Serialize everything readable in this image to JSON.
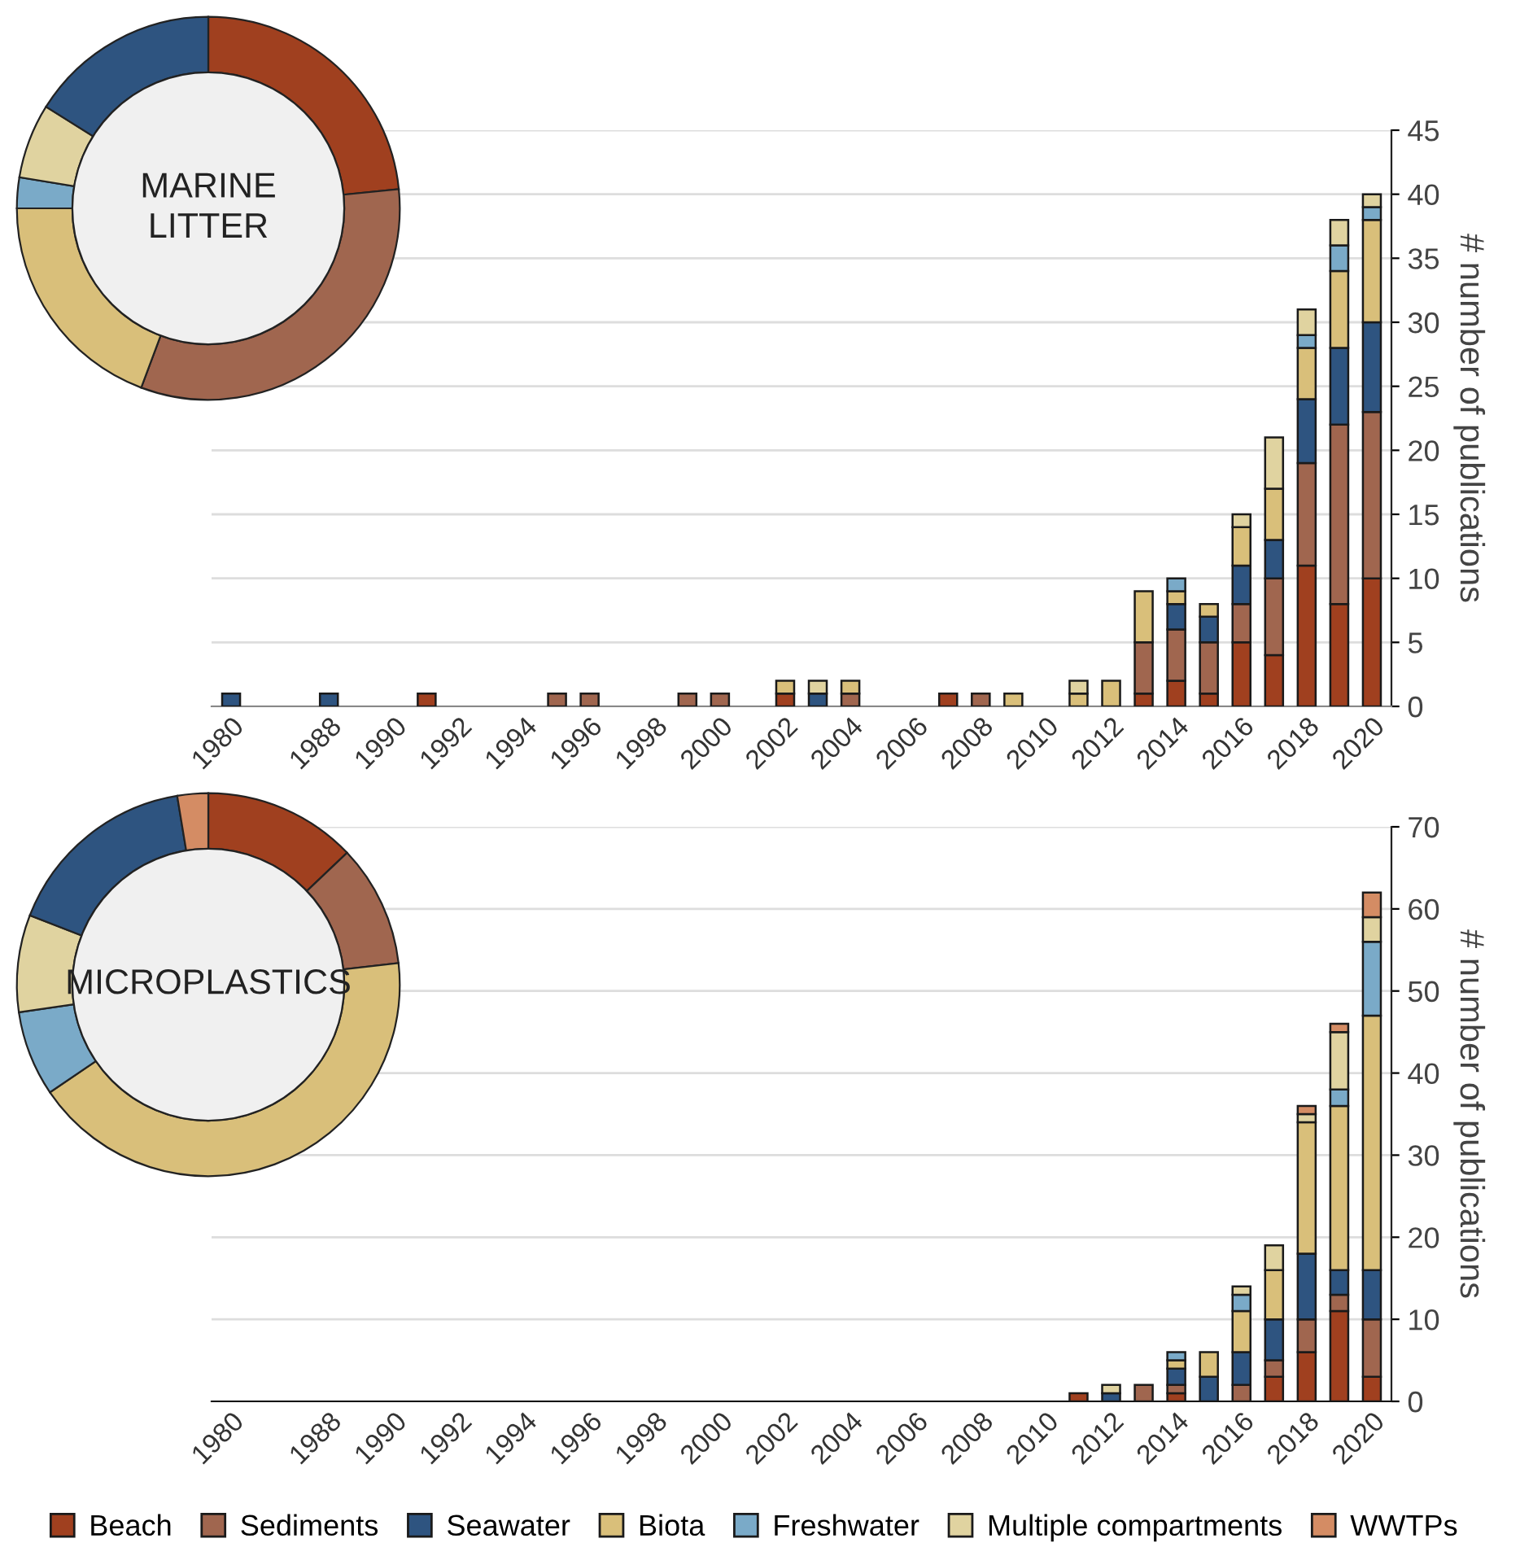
{
  "chart_data": [
    {
      "type": "donut",
      "title": "MARINE\nLITTER",
      "categories": [
        null,
        null,
        null,
        null,
        null,
        null
      ],
      "values": [
        23.4,
        32.3,
        19.3,
        2.6,
        6.3,
        16.1
      ],
      "colors": [
        "#a0401f",
        "#a0664f",
        "#d9bf7a",
        "#7aaac8",
        "#e0d3a0",
        "#2e5480"
      ]
    },
    {
      "type": "bar",
      "stacked": true,
      "ylabel": "# number of publications",
      "ylim": [
        0,
        45
      ],
      "yticks": [
        0,
        5,
        10,
        15,
        20,
        25,
        30,
        35,
        40,
        45
      ],
      "grid": "y",
      "legend": false,
      "categories": [
        "1980",
        null,
        null,
        "1988",
        null,
        "1990",
        null,
        "1992",
        null,
        "1994",
        null,
        "1996",
        null,
        "1998",
        null,
        "2000",
        null,
        "2002",
        null,
        "2004",
        null,
        "2006",
        null,
        "2008",
        null,
        "2010",
        null,
        "2012",
        null,
        "2014",
        null,
        "2016",
        null,
        "2018",
        null,
        "2020"
      ],
      "series": [
        {
          "color": "#a0401f",
          "values": [
            0,
            0,
            0,
            0,
            0,
            0,
            1,
            0,
            0,
            0,
            0,
            0,
            0,
            0,
            0,
            0,
            0,
            1,
            0,
            0,
            0,
            0,
            1,
            0,
            0,
            0,
            0,
            0,
            1,
            2,
            1,
            5,
            4,
            11,
            8,
            10
          ]
        },
        {
          "color": "#a0664f",
          "values": [
            0,
            0,
            0,
            0,
            0,
            0,
            0,
            0,
            0,
            0,
            1,
            1,
            0,
            0,
            1,
            1,
            0,
            0,
            0,
            1,
            0,
            0,
            0,
            1,
            0,
            0,
            0,
            0,
            4,
            4,
            4,
            3,
            6,
            8,
            14,
            13
          ]
        },
        {
          "color": "#2e5480",
          "values": [
            1,
            0,
            0,
            1,
            0,
            0,
            0,
            0,
            0,
            0,
            0,
            0,
            0,
            0,
            0,
            0,
            0,
            0,
            1,
            0,
            0,
            0,
            0,
            0,
            0,
            0,
            0,
            0,
            0,
            2,
            2,
            3,
            3,
            5,
            6,
            7
          ]
        },
        {
          "color": "#d9bf7a",
          "values": [
            0,
            0,
            0,
            0,
            0,
            0,
            0,
            0,
            0,
            0,
            0,
            0,
            0,
            0,
            0,
            0,
            0,
            1,
            0,
            1,
            0,
            0,
            0,
            0,
            1,
            0,
            1,
            2,
            4,
            1,
            1,
            3,
            4,
            4,
            6,
            8
          ]
        },
        {
          "color": "#7aaac8",
          "values": [
            0,
            0,
            0,
            0,
            0,
            0,
            0,
            0,
            0,
            0,
            0,
            0,
            0,
            0,
            0,
            0,
            0,
            0,
            0,
            0,
            0,
            0,
            0,
            0,
            0,
            0,
            0,
            0,
            0,
            1,
            0,
            0,
            0,
            1,
            2,
            1
          ]
        },
        {
          "color": "#e0d3a0",
          "values": [
            0,
            0,
            0,
            0,
            0,
            0,
            0,
            0,
            0,
            0,
            0,
            0,
            0,
            0,
            0,
            0,
            0,
            0,
            1,
            0,
            0,
            0,
            0,
            0,
            0,
            0,
            1,
            0,
            0,
            0,
            0,
            1,
            4,
            2,
            2,
            1
          ]
        }
      ]
    },
    {
      "type": "donut",
      "title": "MICROPLASTICS",
      "categories": [
        null,
        null,
        null,
        null,
        null,
        null,
        null
      ],
      "values": [
        12.9,
        10.3,
        42.3,
        7.2,
        8.2,
        16.5,
        2.6
      ],
      "colors": [
        "#a0401f",
        "#a0664f",
        "#d9bf7a",
        "#7aaac8",
        "#e0d3a0",
        "#2e5480",
        "#d48c64"
      ]
    },
    {
      "type": "bar",
      "stacked": true,
      "ylabel": "# number of publications",
      "ylim": [
        0,
        70
      ],
      "yticks": [
        0,
        10,
        20,
        30,
        40,
        50,
        60,
        70
      ],
      "grid": "y",
      "legend": "bottom",
      "categories": [
        "1980",
        null,
        null,
        "1988",
        null,
        "1990",
        null,
        "1992",
        null,
        "1994",
        null,
        "1996",
        null,
        "1998",
        null,
        "2000",
        null,
        "2002",
        null,
        "2004",
        null,
        "2006",
        null,
        "2008",
        null,
        "2010",
        null,
        "2012",
        null,
        "2014",
        null,
        "2016",
        null,
        "2018",
        null,
        "2020"
      ],
      "series": [
        {
          "name": "Beach",
          "color": "#a0401f",
          "values": [
            0,
            0,
            0,
            0,
            0,
            0,
            0,
            0,
            0,
            0,
            0,
            0,
            0,
            0,
            0,
            0,
            0,
            0,
            0,
            0,
            0,
            0,
            0,
            0,
            0,
            0,
            1,
            0,
            0,
            1,
            0,
            0,
            3,
            6,
            11,
            3
          ]
        },
        {
          "name": "Sediments",
          "color": "#a0664f",
          "values": [
            0,
            0,
            0,
            0,
            0,
            0,
            0,
            0,
            0,
            0,
            0,
            0,
            0,
            0,
            0,
            0,
            0,
            0,
            0,
            0,
            0,
            0,
            0,
            0,
            0,
            0,
            0,
            0,
            2,
            1,
            0,
            2,
            2,
            4,
            2,
            7
          ]
        },
        {
          "name": "Seawater",
          "color": "#2e5480",
          "values": [
            0,
            0,
            0,
            0,
            0,
            0,
            0,
            0,
            0,
            0,
            0,
            0,
            0,
            0,
            0,
            0,
            0,
            0,
            0,
            0,
            0,
            0,
            0,
            0,
            0,
            0,
            0,
            1,
            0,
            2,
            3,
            4,
            5,
            8,
            3,
            6
          ]
        },
        {
          "name": "Biota",
          "color": "#d9bf7a",
          "values": [
            0,
            0,
            0,
            0,
            0,
            0,
            0,
            0,
            0,
            0,
            0,
            0,
            0,
            0,
            0,
            0,
            0,
            0,
            0,
            0,
            0,
            0,
            0,
            0,
            0,
            0,
            0,
            0,
            0,
            1,
            3,
            5,
            6,
            16,
            20,
            31
          ]
        },
        {
          "name": "Freshwater",
          "color": "#7aaac8",
          "values": [
            0,
            0,
            0,
            0,
            0,
            0,
            0,
            0,
            0,
            0,
            0,
            0,
            0,
            0,
            0,
            0,
            0,
            0,
            0,
            0,
            0,
            0,
            0,
            0,
            0,
            0,
            0,
            0,
            0,
            1,
            0,
            2,
            0,
            0,
            2,
            9
          ]
        },
        {
          "name": "Multiple compartments",
          "color": "#e0d3a0",
          "values": [
            0,
            0,
            0,
            0,
            0,
            0,
            0,
            0,
            0,
            0,
            0,
            0,
            0,
            0,
            0,
            0,
            0,
            0,
            0,
            0,
            0,
            0,
            0,
            0,
            0,
            0,
            0,
            1,
            0,
            0,
            0,
            1,
            3,
            1,
            7,
            3
          ]
        },
        {
          "name": "WWTPs",
          "color": "#d48c64",
          "values": [
            0,
            0,
            0,
            0,
            0,
            0,
            0,
            0,
            0,
            0,
            0,
            0,
            0,
            0,
            0,
            0,
            0,
            0,
            0,
            0,
            0,
            0,
            0,
            0,
            0,
            0,
            0,
            0,
            0,
            0,
            0,
            0,
            0,
            1,
            1,
            3
          ]
        }
      ]
    }
  ]
}
